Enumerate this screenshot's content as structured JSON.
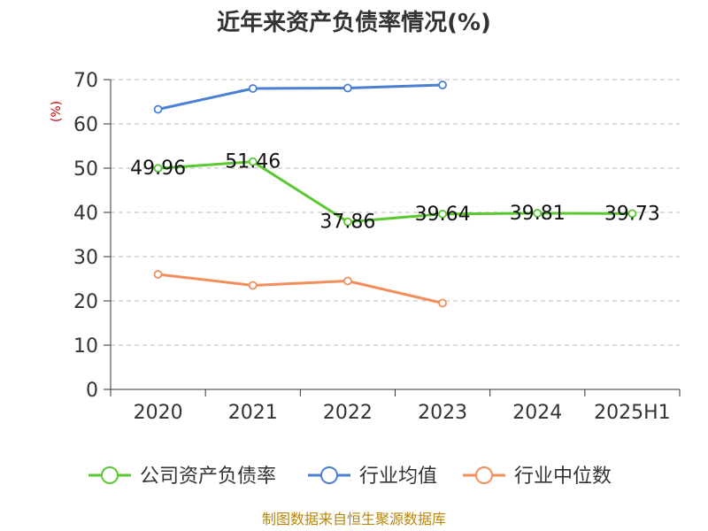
{
  "chart_data": {
    "type": "line",
    "title": "近年来资产负债率情况(%)",
    "ylabel": "(%)",
    "xlabel": "",
    "categories": [
      "2020",
      "2021",
      "2022",
      "2023",
      "2024",
      "2025H1"
    ],
    "ylim": [
      0,
      70
    ],
    "yticks": [
      0,
      10,
      20,
      30,
      40,
      50,
      60,
      70
    ],
    "grid": "horizontal-dashed",
    "legend_position": "bottom",
    "series": [
      {
        "name": "公司资产负债率",
        "color": "#5cc831",
        "values": [
          49.96,
          51.46,
          37.86,
          39.64,
          39.81,
          39.73
        ],
        "labels": [
          "49.96",
          "51.46",
          "37.86",
          "39.64",
          "39.81",
          "39.73"
        ],
        "show_labels": true
      },
      {
        "name": "行业均值",
        "color": "#4a7fd6",
        "values": [
          63.3,
          68.0,
          68.1,
          68.8,
          null,
          null
        ],
        "show_labels": false
      },
      {
        "name": "行业中位数",
        "color": "#f28e5c",
        "values": [
          26.0,
          23.5,
          24.5,
          19.5,
          null,
          null
        ],
        "show_labels": false
      }
    ],
    "source": "制图数据来自恒生聚源数据库"
  }
}
